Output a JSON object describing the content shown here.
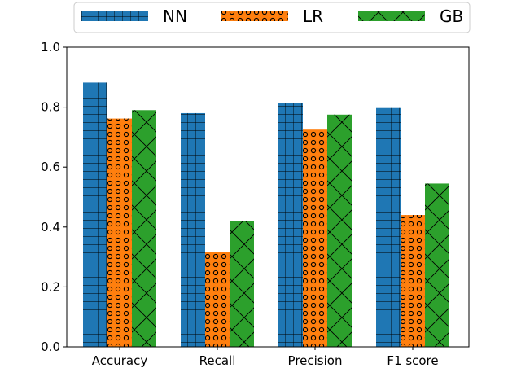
{
  "chart_data": {
    "type": "bar",
    "title": "",
    "xlabel": "",
    "ylabel": "",
    "categories": [
      "Accuracy",
      "Recall",
      "Precision",
      "F1 score"
    ],
    "series": [
      {
        "name": "NN",
        "values": [
          0.882,
          0.78,
          0.815,
          0.797
        ],
        "color": "#1f77b4",
        "hatch": "grid"
      },
      {
        "name": "LR",
        "values": [
          0.762,
          0.316,
          0.725,
          0.44
        ],
        "color": "#ff7f0e",
        "hatch": "circles"
      },
      {
        "name": "GB",
        "values": [
          0.79,
          0.42,
          0.775,
          0.545
        ],
        "color": "#2ca02c",
        "hatch": "cross"
      }
    ],
    "ylim": [
      0,
      1.0
    ],
    "yticks": [
      0.0,
      0.2,
      0.4,
      0.6,
      0.8,
      1.0
    ],
    "ytick_labels": [
      "0.0",
      "0.2",
      "0.4",
      "0.6",
      "0.8",
      "1.0"
    ],
    "grid": false,
    "legend_position": "top-center"
  }
}
